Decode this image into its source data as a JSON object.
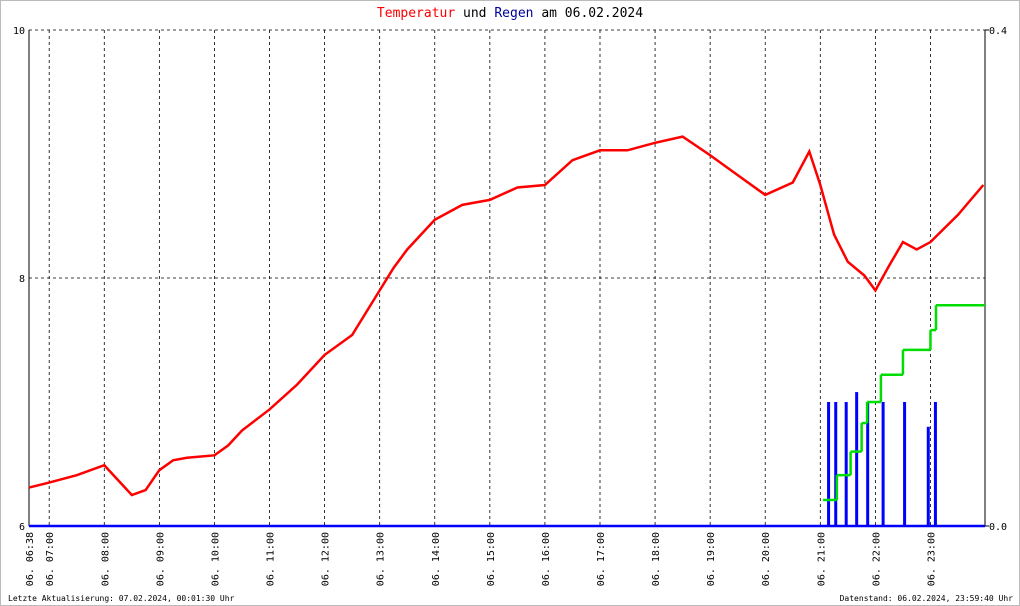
{
  "chart_data": {
    "type": "line",
    "title_words": [
      "und",
      "am 06.02.2024"
    ],
    "footer_left": "Letzte Aktualisierung: 07.02.2024, 00:01:30 Uhr",
    "footer_right": "Datenstand: 06.02.2024, 23:59:40 Uhr",
    "xlim": [
      6.6333,
      23.99
    ],
    "xticks": [
      {
        "value": 6.6333,
        "label": "06. 06:38"
      },
      {
        "value": 7,
        "label": "06. 07:00"
      },
      {
        "value": 8,
        "label": "06. 08:00"
      },
      {
        "value": 9,
        "label": "06. 09:00"
      },
      {
        "value": 10,
        "label": "06. 10:00"
      },
      {
        "value": 11,
        "label": "06. 11:00"
      },
      {
        "value": 12,
        "label": "06. 12:00"
      },
      {
        "value": 13,
        "label": "06. 13:00"
      },
      {
        "value": 14,
        "label": "06. 14:00"
      },
      {
        "value": 15,
        "label": "06. 15:00"
      },
      {
        "value": 16,
        "label": "06. 16:00"
      },
      {
        "value": 17,
        "label": "06. 17:00"
      },
      {
        "value": 18,
        "label": "06. 18:00"
      },
      {
        "value": 19,
        "label": "06. 19:00"
      },
      {
        "value": 20,
        "label": "06. 20:00"
      },
      {
        "value": 21,
        "label": "06. 21:00"
      },
      {
        "value": 22,
        "label": "06. 22:00"
      },
      {
        "value": 23,
        "label": "06. 23:00"
      }
    ],
    "ylim": [
      6,
      10
    ],
    "yticks": [
      6,
      8,
      10
    ],
    "y2lim": [
      0,
      0.4
    ],
    "y2ticks": [
      {
        "value": 0,
        "label": "0.0"
      },
      {
        "value": 0.4,
        "label": "0.4"
      }
    ],
    "grid": true,
    "series": [
      {
        "name": "Temperatur",
        "color": "#ff0000",
        "kind": "line",
        "x": [
          6.6333,
          7,
          7.5,
          8,
          8.25,
          8.5,
          8.75,
          9,
          9.25,
          9.5,
          10,
          10.25,
          10.5,
          11,
          11.5,
          12,
          12.5,
          13,
          13.25,
          13.5,
          14,
          14.5,
          15,
          15.5,
          16,
          16.5,
          17,
          17.5,
          18,
          18.5,
          19,
          19.5,
          20,
          20.5,
          20.8,
          21,
          21.25,
          21.5,
          21.8,
          22,
          22.25,
          22.5,
          22.75,
          23,
          23.5,
          23.96
        ],
        "values": [
          6.31,
          6.35,
          6.41,
          6.49,
          6.37,
          6.25,
          6.29,
          6.45,
          6.53,
          6.55,
          6.57,
          6.65,
          6.77,
          6.94,
          7.14,
          7.38,
          7.54,
          7.9,
          8.08,
          8.23,
          8.47,
          8.59,
          8.63,
          8.73,
          8.75,
          8.95,
          9.03,
          9.03,
          9.09,
          9.14,
          8.99,
          8.83,
          8.67,
          8.77,
          9.02,
          8.75,
          8.35,
          8.13,
          8.02,
          7.9,
          8.1,
          8.29,
          8.23,
          8.29,
          8.51,
          8.75
        ]
      },
      {
        "name": "Regen",
        "color": "#0000ff",
        "kind": "bar",
        "axis": "y2",
        "x": [
          21.15,
          21.28,
          21.47,
          21.66,
          21.86,
          22.14,
          22.53,
          22.96,
          23.09
        ],
        "values": [
          0.1,
          0.1,
          0.1,
          0.108,
          0.1,
          0.1,
          0.1,
          0.08,
          0.1
        ]
      },
      {
        "color": "#00dd00",
        "kind": "step",
        "axis": "y2",
        "x": [
          21.05,
          21.3,
          21.55,
          21.75,
          21.85,
          22.1,
          22.5,
          23.0,
          23.1
        ],
        "values": [
          0.021,
          0.041,
          0.06,
          0.083,
          0.1,
          0.122,
          0.142,
          0.158,
          0.178
        ]
      }
    ]
  }
}
